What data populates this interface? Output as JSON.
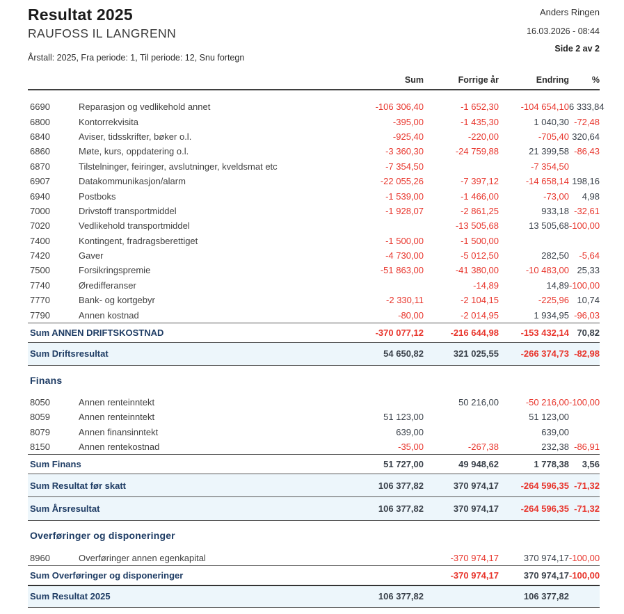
{
  "page": {
    "title": "Resultat 2025",
    "subtitle": "RAUFOSS IL LANGRENN",
    "params": "Årstall: 2025,  Fra periode: 1,  Til periode: 12,  Snu fortegn",
    "author": "Anders Ringen",
    "printed": "16.03.2026 - 08:44",
    "page_label": "Side 2 av 2"
  },
  "colors": {
    "negative_value": "#e8352c",
    "positive_value": "#3a414a",
    "sum_label": "#1e3c64",
    "band_background": "#edf6fb"
  },
  "table": {
    "columns": [
      "Sum",
      "Forrige år",
      "Endring",
      "%"
    ],
    "rows": [
      {
        "type": "account",
        "acct": "6690",
        "label": "Reparasjon og vedlikehold annet",
        "values": [
          "-106 306,40",
          "-1 652,30",
          "-104 654,10",
          "6 333,84"
        ]
      },
      {
        "type": "account",
        "acct": "6800",
        "label": "Kontorrekvisita",
        "values": [
          "-395,00",
          "-1 435,30",
          "1 040,30",
          "-72,48"
        ]
      },
      {
        "type": "account",
        "acct": "6840",
        "label": "Aviser, tidsskrifter, bøker o.l.",
        "values": [
          "-925,40",
          "-220,00",
          "-705,40",
          "320,64"
        ]
      },
      {
        "type": "account",
        "acct": "6860",
        "label": "Møte, kurs, oppdatering o.l.",
        "values": [
          "-3 360,30",
          "-24 759,88",
          "21 399,58",
          "-86,43"
        ]
      },
      {
        "type": "account",
        "acct": "6870",
        "label": "Tilstelninger, feiringer, avslutninger, kveldsmat etc",
        "values": [
          "-7 354,50",
          "",
          "-7 354,50",
          ""
        ]
      },
      {
        "type": "account",
        "acct": "6907",
        "label": "Datakommunikasjon/alarm",
        "values": [
          "-22 055,26",
          "-7 397,12",
          "-14 658,14",
          "198,16"
        ]
      },
      {
        "type": "account",
        "acct": "6940",
        "label": "Postboks",
        "values": [
          "-1 539,00",
          "-1 466,00",
          "-73,00",
          "4,98"
        ]
      },
      {
        "type": "account",
        "acct": "7000",
        "label": "Drivstoff transportmiddel",
        "values": [
          "-1 928,07",
          "-2 861,25",
          "933,18",
          "-32,61"
        ]
      },
      {
        "type": "account",
        "acct": "7020",
        "label": "Vedlikehold transportmiddel",
        "values": [
          "",
          "-13 505,68",
          "13 505,68",
          "-100,00"
        ]
      },
      {
        "type": "account",
        "acct": "7400",
        "label": "Kontingent, fradragsberettiget",
        "values": [
          "-1 500,00",
          "-1 500,00",
          "",
          ""
        ]
      },
      {
        "type": "account",
        "acct": "7420",
        "label": "Gaver",
        "values": [
          "-4 730,00",
          "-5 012,50",
          "282,50",
          "-5,64"
        ]
      },
      {
        "type": "account",
        "acct": "7500",
        "label": "Forsikringspremie",
        "values": [
          "-51 863,00",
          "-41 380,00",
          "-10 483,00",
          "25,33"
        ]
      },
      {
        "type": "account",
        "acct": "7740",
        "label": "Øredifferanser",
        "values": [
          "",
          "-14,89",
          "14,89",
          "-100,00"
        ]
      },
      {
        "type": "account",
        "acct": "7770",
        "label": "Bank- og kortgebyr",
        "values": [
          "-2 330,11",
          "-2 104,15",
          "-225,96",
          "10,74"
        ]
      },
      {
        "type": "account",
        "acct": "7790",
        "label": "Annen kostnad",
        "values": [
          "-80,00",
          "-2 014,95",
          "1 934,95",
          "-96,03"
        ]
      },
      {
        "type": "sum",
        "label": "Sum ANNEN DRIFTSKOSTNAD",
        "values": [
          "-370 077,12",
          "-216 644,98",
          "-153 432,14",
          "70,82"
        ]
      },
      {
        "type": "band",
        "label": "Sum Driftsresultat",
        "values": [
          "54 650,82",
          "321 025,55",
          "-266 374,73",
          "-82,98"
        ]
      },
      {
        "type": "section",
        "label": "Finans"
      },
      {
        "type": "account",
        "acct": "8050",
        "label": "Annen renteinntekt",
        "values": [
          "",
          "50 216,00",
          "-50 216,00",
          "-100,00"
        ]
      },
      {
        "type": "account",
        "acct": "8059",
        "label": "Annen renteinntekt",
        "values": [
          "51 123,00",
          "",
          "51 123,00",
          ""
        ]
      },
      {
        "type": "account",
        "acct": "8079",
        "label": "Annen finansinntekt",
        "values": [
          "639,00",
          "",
          "639,00",
          ""
        ]
      },
      {
        "type": "account",
        "acct": "8150",
        "label": "Annen rentekostnad",
        "values": [
          "-35,00",
          "-267,38",
          "232,38",
          "-86,91"
        ]
      },
      {
        "type": "sum",
        "label": "Sum Finans",
        "values": [
          "51 727,00",
          "49 948,62",
          "1 778,38",
          "3,56"
        ]
      },
      {
        "type": "band",
        "label": "Sum Resultat før skatt",
        "values": [
          "106 377,82",
          "370 974,17",
          "-264 596,35",
          "-71,32"
        ]
      },
      {
        "type": "band",
        "label": "Sum Årsresultat",
        "values": [
          "106 377,82",
          "370 974,17",
          "-264 596,35",
          "-71,32"
        ]
      },
      {
        "type": "section",
        "label": "Overføringer og disponeringer"
      },
      {
        "type": "account",
        "acct": "8960",
        "label": "Overføringer annen egenkapital",
        "values": [
          "",
          "-370 974,17",
          "370 974,17",
          "-100,00"
        ]
      },
      {
        "type": "sum",
        "label": "Sum Overføringer og disponeringer",
        "values": [
          "",
          "-370 974,17",
          "370 974,17",
          "-100,00"
        ]
      },
      {
        "type": "band",
        "label": "Sum Resultat 2025",
        "values": [
          "106 377,82",
          "",
          "106 377,82",
          ""
        ]
      }
    ]
  }
}
